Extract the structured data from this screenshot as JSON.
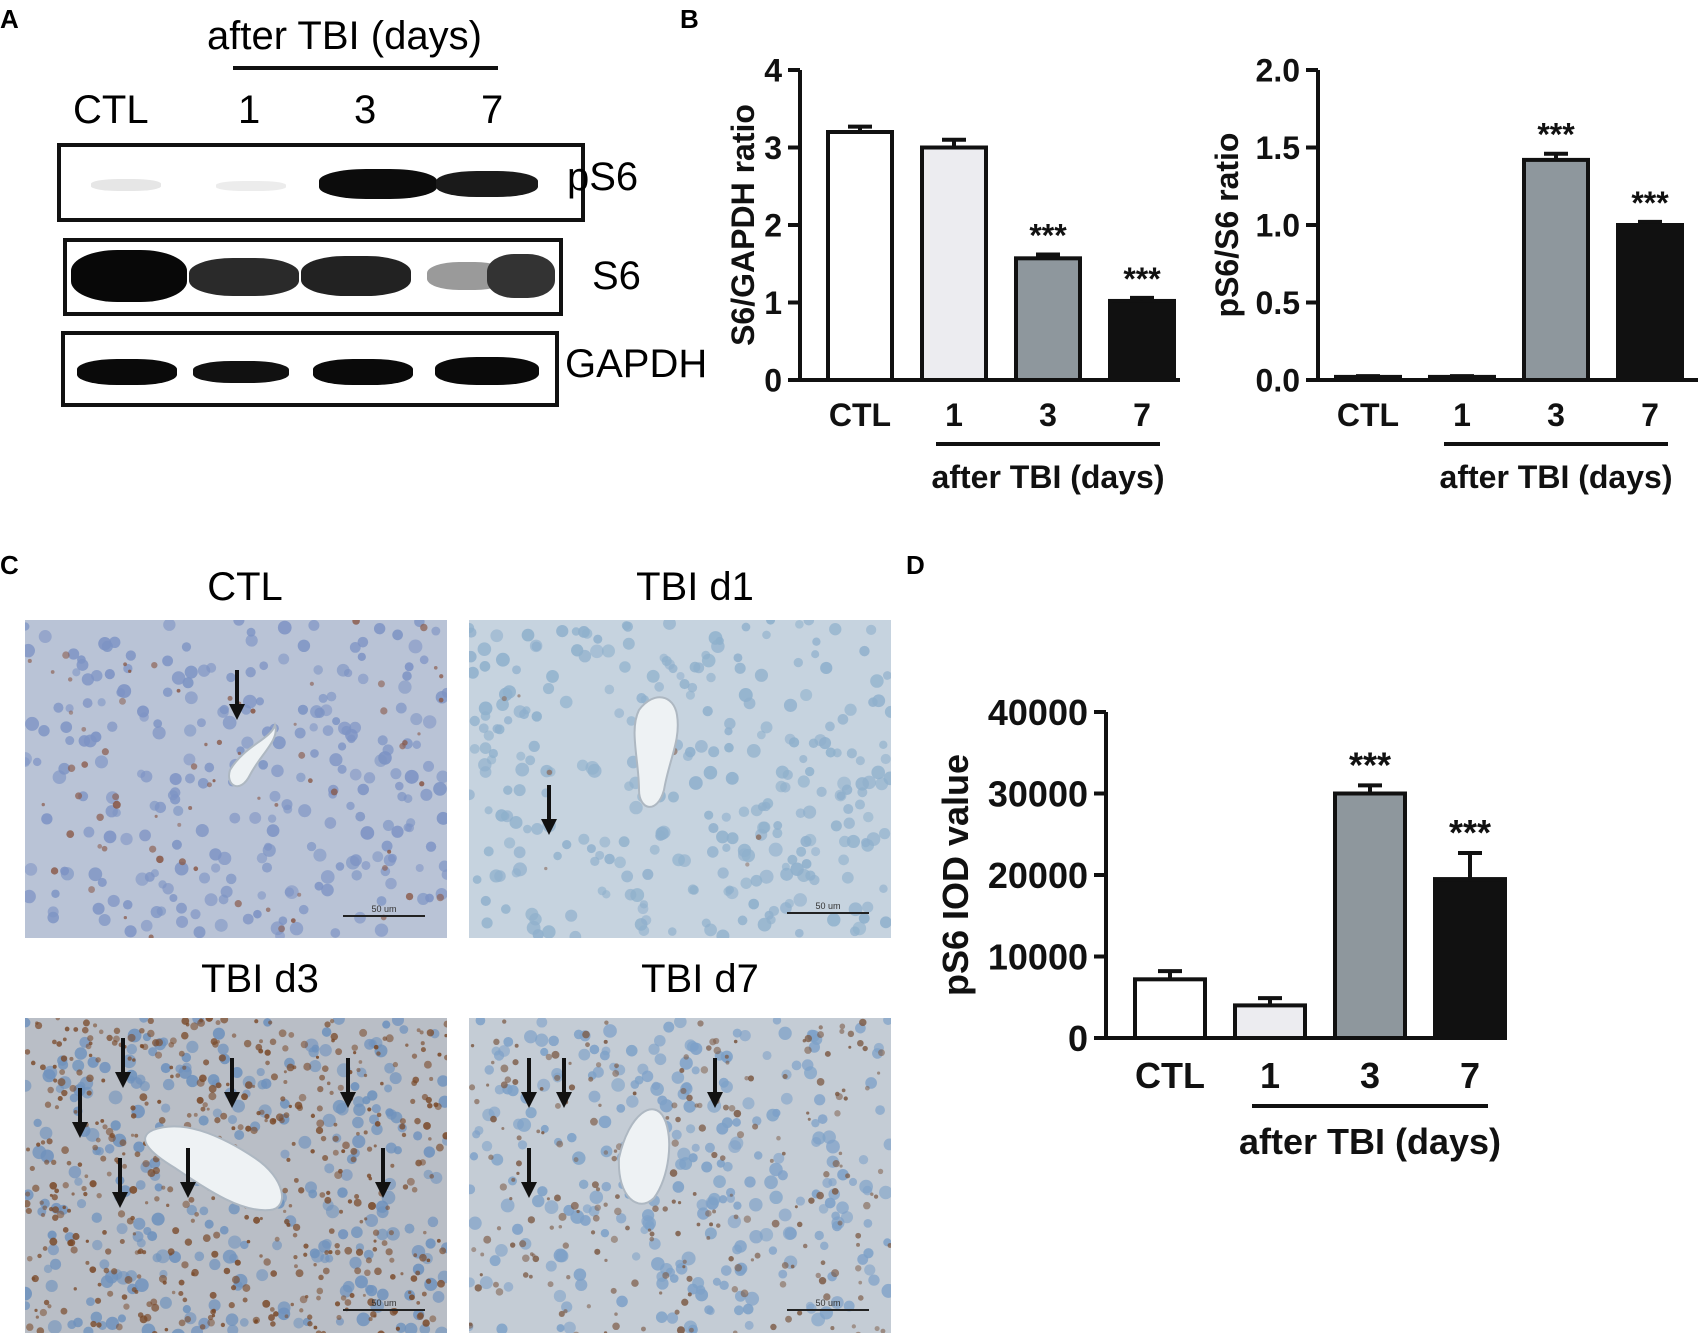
{
  "panels": {
    "A": "A",
    "B": "B",
    "C": "C",
    "D": "D"
  },
  "western": {
    "group_header": "after TBI  (days)",
    "lanes": [
      "CTL",
      "1",
      "3",
      "7"
    ],
    "rows": [
      "pS6",
      "S6",
      "GAPDH"
    ]
  },
  "ihc": {
    "titles": [
      "CTL",
      "TBI  d1",
      "TBI  d3",
      "TBI  d7"
    ],
    "scale_bar": "50 um"
  },
  "chart_data": [
    {
      "type": "bar",
      "categories": [
        "CTL",
        "1",
        "3",
        "7"
      ],
      "values": [
        3.2,
        3.0,
        1.57,
        1.02
      ],
      "errors": [
        0.07,
        0.1,
        0.05,
        0.04
      ],
      "significance": [
        "",
        "",
        "***",
        "***"
      ],
      "ylabel": "S6/GAPDH ratio",
      "xlabel": "after TBI (days)",
      "ylim": [
        0,
        4
      ],
      "yticks": [
        "0",
        "1",
        "2",
        "3",
        "4"
      ],
      "bar_colors": [
        "#ffffff",
        "#ececf0",
        "#8e979d",
        "#111111"
      ]
    },
    {
      "type": "bar",
      "categories": [
        "CTL",
        "1",
        "3",
        "7"
      ],
      "values": [
        0.02,
        0.02,
        1.42,
        1.0
      ],
      "errors": [
        0.005,
        0.005,
        0.04,
        0.02
      ],
      "significance": [
        "",
        "",
        "***",
        "***"
      ],
      "ylabel": "pS6/S6 ratio",
      "xlabel": "after TBI (days)",
      "ylim": [
        0,
        2.0
      ],
      "yticks": [
        "0.0",
        "0.5",
        "1.0",
        "1.5",
        "2.0"
      ],
      "bar_colors": [
        "#ffffff",
        "#ececf0",
        "#8e979d",
        "#111111"
      ]
    },
    {
      "type": "bar",
      "categories": [
        "CTL",
        "1",
        "3",
        "7"
      ],
      "values": [
        7200,
        4000,
        30000,
        19500
      ],
      "errors": [
        1000,
        900,
        1000,
        3200
      ],
      "significance": [
        "",
        "",
        "***",
        "***"
      ],
      "ylabel": "pS6  IOD value",
      "xlabel": "after TBI (days)",
      "ylim": [
        0,
        40000
      ],
      "yticks": [
        "0",
        "10000",
        "20000",
        "30000",
        "40000"
      ],
      "bar_colors": [
        "#ffffff",
        "#ececf0",
        "#8e979d",
        "#111111"
      ]
    }
  ]
}
